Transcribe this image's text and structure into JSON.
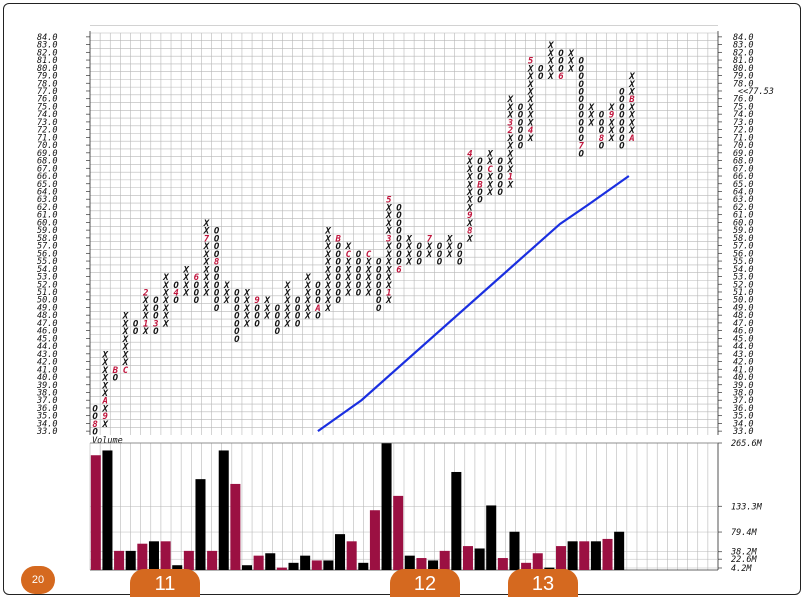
{
  "slide": {
    "page_number": "20",
    "callouts": [
      "11",
      "12",
      "13"
    ]
  },
  "colors": {
    "x_mark": "#111111",
    "o_mark": "#111111",
    "month_label": "#c0143c",
    "trendline": "#1a2fe0",
    "volume_up": "#000000",
    "volume_down": "#9b1042",
    "grid": "#b8b8b8",
    "price_marker": "#c0143c"
  },
  "chart_data": [
    {
      "type": "point-and-figure",
      "y_tick_labels": [
        "33.0",
        "34.0",
        "35.0",
        "36.0",
        "37.0",
        "38.0",
        "39.0",
        "40.0",
        "41.0",
        "42.0",
        "43.0",
        "44.0",
        "45.0",
        "46.0",
        "47.0",
        "48.0",
        "49.0",
        "50.0",
        "51.0",
        "52.0",
        "53.0",
        "54.0",
        "55.0",
        "56.0",
        "57.0",
        "58.0",
        "59.0",
        "60.0",
        "61.0",
        "62.0",
        "63.0",
        "64.0",
        "65.0",
        "66.0",
        "67.0",
        "68.0",
        "69.0",
        "70.0",
        "71.0",
        "72.0",
        "73.0",
        "74.0",
        "75.0",
        "76.0",
        "77.0",
        "78.0",
        "79.0",
        "80.0",
        "81.0",
        "82.0",
        "83.0",
        "84.0"
      ],
      "ylim": [
        33,
        84
      ],
      "box_size": 1,
      "current_price_left": "77.0",
      "current_price_right": "<<77.53",
      "current_price_value": 77,
      "columns": [
        {
          "mark": "O",
          "low": 33,
          "high": 36,
          "labels": {
            "34": "8"
          }
        },
        {
          "mark": "X",
          "low": 34,
          "high": 43,
          "labels": {
            "35": "9",
            "37": "A"
          }
        },
        {
          "mark": "O",
          "low": 40,
          "high": 41,
          "labels": {
            "41": "B"
          }
        },
        {
          "mark": "X",
          "low": 41,
          "high": 48,
          "labels": {
            "41": "C"
          }
        },
        {
          "mark": "O",
          "low": 46,
          "high": 47,
          "labels": {}
        },
        {
          "mark": "X",
          "low": 46,
          "high": 51,
          "labels": {
            "47": "1",
            "51": "2"
          }
        },
        {
          "mark": "O",
          "low": 46,
          "high": 50,
          "labels": {
            "47": "3"
          }
        },
        {
          "mark": "X",
          "low": 47,
          "high": 53,
          "labels": {}
        },
        {
          "mark": "O",
          "low": 50,
          "high": 52,
          "labels": {
            "51": "4"
          }
        },
        {
          "mark": "X",
          "low": 51,
          "high": 54,
          "labels": {}
        },
        {
          "mark": "O",
          "low": 50,
          "high": 53,
          "labels": {
            "53": "6"
          }
        },
        {
          "mark": "X",
          "low": 51,
          "high": 60,
          "labels": {
            "58": "7"
          }
        },
        {
          "mark": "O",
          "low": 49,
          "high": 59,
          "labels": {
            "55": "8"
          }
        },
        {
          "mark": "X",
          "low": 50,
          "high": 52,
          "labels": {}
        },
        {
          "mark": "O",
          "low": 45,
          "high": 51,
          "labels": {}
        },
        {
          "mark": "X",
          "low": 47,
          "high": 51,
          "labels": {}
        },
        {
          "mark": "O",
          "low": 47,
          "high": 50,
          "labels": {
            "50": "9"
          }
        },
        {
          "mark": "X",
          "low": 48,
          "high": 50,
          "labels": {}
        },
        {
          "mark": "O",
          "low": 46,
          "high": 49,
          "labels": {}
        },
        {
          "mark": "X",
          "low": 47,
          "high": 52,
          "labels": {}
        },
        {
          "mark": "O",
          "low": 47,
          "high": 50,
          "labels": {}
        },
        {
          "mark": "X",
          "low": 48,
          "high": 53,
          "labels": {}
        },
        {
          "mark": "O",
          "low": 48,
          "high": 52,
          "labels": {
            "49": "A"
          }
        },
        {
          "mark": "X",
          "low": 49,
          "high": 59,
          "labels": {}
        },
        {
          "mark": "O",
          "low": 50,
          "high": 58,
          "labels": {
            "58": "B"
          }
        },
        {
          "mark": "X",
          "low": 51,
          "high": 57,
          "labels": {
            "56": "C"
          }
        },
        {
          "mark": "O",
          "low": 51,
          "high": 56,
          "labels": {}
        },
        {
          "mark": "X",
          "low": 51,
          "high": 56,
          "labels": {
            "56": "C"
          }
        },
        {
          "mark": "O",
          "low": 49,
          "high": 55,
          "labels": {}
        },
        {
          "mark": "X",
          "low": 50,
          "high": 63,
          "labels": {
            "51": "1",
            "58": "3",
            "63": "5"
          }
        },
        {
          "mark": "O",
          "low": 54,
          "high": 62,
          "labels": {
            "54": "6"
          }
        },
        {
          "mark": "X",
          "low": 55,
          "high": 58,
          "labels": {}
        },
        {
          "mark": "O",
          "low": 55,
          "high": 57,
          "labels": {}
        },
        {
          "mark": "X",
          "low": 56,
          "high": 58,
          "labels": {
            "58": "7"
          }
        },
        {
          "mark": "O",
          "low": 55,
          "high": 57,
          "labels": {}
        },
        {
          "mark": "X",
          "low": 56,
          "high": 58,
          "labels": {}
        },
        {
          "mark": "O",
          "low": 55,
          "high": 57,
          "labels": {}
        },
        {
          "mark": "X",
          "low": 58,
          "high": 69,
          "labels": {
            "59": "8",
            "61": "9",
            "69": "4"
          }
        },
        {
          "mark": "O",
          "low": 63,
          "high": 68,
          "labels": {
            "65": "B"
          }
        },
        {
          "mark": "X",
          "low": 64,
          "high": 69,
          "labels": {
            "67": "C"
          }
        },
        {
          "mark": "O",
          "low": 64,
          "high": 68,
          "labels": {}
        },
        {
          "mark": "X",
          "low": 65,
          "high": 76,
          "labels": {
            "66": "1",
            "72": "2",
            "73": "3"
          }
        },
        {
          "mark": "O",
          "low": 70,
          "high": 75,
          "labels": {}
        },
        {
          "mark": "X",
          "low": 71,
          "high": 81,
          "labels": {
            "72": "4",
            "81": "5"
          }
        },
        {
          "mark": "O",
          "low": 79,
          "high": 80,
          "labels": {}
        },
        {
          "mark": "X",
          "low": 79,
          "high": 83,
          "labels": {}
        },
        {
          "mark": "O",
          "low": 79,
          "high": 82,
          "labels": {
            "79": "6"
          }
        },
        {
          "mark": "X",
          "low": 80,
          "high": 82,
          "labels": {}
        },
        {
          "mark": "O",
          "low": 69,
          "high": 81,
          "labels": {
            "70": "7"
          }
        },
        {
          "mark": "X",
          "low": 73,
          "high": 75,
          "labels": {}
        },
        {
          "mark": "O",
          "low": 70,
          "high": 74,
          "labels": {
            "71": "8"
          }
        },
        {
          "mark": "X",
          "low": 71,
          "high": 75,
          "labels": {
            "74": "9"
          }
        },
        {
          "mark": "O",
          "low": 70,
          "high": 77,
          "labels": {}
        },
        {
          "mark": "X",
          "low": 71,
          "high": 79,
          "labels": {
            "71": "A",
            "76": "B"
          }
        }
      ],
      "trendline": [
        [
          22.5,
          33.0
        ],
        [
          26.8,
          37.0
        ],
        [
          46.4,
          59.8
        ],
        [
          49.2,
          62.3
        ],
        [
          53.2,
          66.0
        ]
      ]
    },
    {
      "type": "bar",
      "title": "Volume",
      "y_tick_labels": [
        "265.6M",
        "133.3M",
        "79.4M",
        "38.2M",
        "22.6M",
        "4.2M"
      ],
      "ylim": [
        0,
        265.6
      ],
      "values": [
        240,
        250,
        40,
        40,
        55,
        60,
        60,
        10,
        40,
        190,
        40,
        250,
        180,
        10,
        30,
        35,
        5,
        15,
        30,
        20,
        20,
        75,
        60,
        15,
        125,
        265,
        155,
        30,
        25,
        20,
        40,
        205,
        50,
        45,
        135,
        25,
        80,
        15,
        35,
        5,
        50,
        60,
        60,
        60,
        65,
        80
      ],
      "colors": [
        "down",
        "up",
        "down",
        "up",
        "down",
        "up",
        "down",
        "up",
        "down",
        "up",
        "down",
        "up",
        "down",
        "up",
        "down",
        "up",
        "down",
        "up",
        "up",
        "down",
        "up",
        "up",
        "down",
        "up",
        "down",
        "up",
        "down",
        "up",
        "down",
        "up",
        "down",
        "up",
        "down",
        "up",
        "up",
        "down",
        "up",
        "down",
        "down",
        "up",
        "down",
        "up",
        "down",
        "up",
        "down",
        "up"
      ]
    }
  ]
}
